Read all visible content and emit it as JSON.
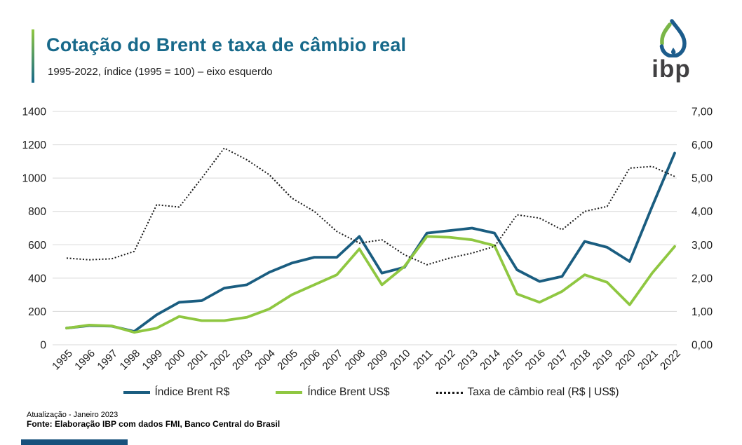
{
  "theme": {
    "title_color": "#17698a",
    "accent_green": "#8fc741",
    "accent_blue": "#17698a",
    "grid_color": "#d9d9d9"
  },
  "header": {
    "title": "Cotação do Brent e taxa de câmbio real",
    "subtitle": "1995-2022, índice (1995 = 100) – eixo esquerdo"
  },
  "logo": {
    "text": "ibp",
    "drop_color": "#1c5c8c",
    "leaf_color": "#7ab648"
  },
  "chart_data": {
    "type": "line",
    "title": "Cotação do Brent e taxa de câmbio real",
    "subtitle": "1995-2022, índice (1995 = 100) – eixo esquerdo",
    "grid": true,
    "legend_position": "bottom",
    "categories": [
      "1995",
      "1996",
      "1997",
      "1998",
      "1999",
      "2000",
      "2001",
      "2002",
      "2003",
      "2004",
      "2005",
      "2006",
      "2007",
      "2008",
      "2009",
      "2010",
      "2011",
      "2012",
      "2013",
      "2014",
      "2015",
      "2016",
      "2017",
      "2018",
      "2019",
      "2020",
      "2021",
      "2022"
    ],
    "left_axis": {
      "min": 0,
      "max": 1400,
      "step": 200,
      "ticks": [
        "0",
        "200",
        "400",
        "600",
        "800",
        "1000",
        "1200",
        "1400"
      ]
    },
    "right_axis": {
      "min": 0,
      "max": 7,
      "step": 1,
      "ticks": [
        "0,00",
        "1,00",
        "2,00",
        "3,00",
        "4,00",
        "5,00",
        "6,00",
        "7,00"
      ]
    },
    "series": [
      {
        "name": "Índice Brent R$",
        "axis": "left",
        "style": "solid",
        "color": "#1a5d80",
        "values": [
          100,
          115,
          112,
          80,
          180,
          255,
          265,
          340,
          360,
          435,
          490,
          525,
          525,
          650,
          430,
          465,
          670,
          685,
          700,
          670,
          450,
          380,
          410,
          620,
          585,
          500,
          830,
          1150
        ]
      },
      {
        "name": "Índice Brent US$",
        "axis": "left",
        "style": "solid",
        "color": "#8fc741",
        "values": [
          100,
          118,
          113,
          75,
          100,
          170,
          145,
          145,
          165,
          215,
          300,
          360,
          420,
          575,
          360,
          470,
          650,
          645,
          630,
          595,
          305,
          255,
          320,
          420,
          375,
          240,
          430,
          590
        ]
      },
      {
        "name": "Taxa de câmbio real (R$ | US$)",
        "axis": "right",
        "style": "dotted",
        "color": "#1a1a1a",
        "values": [
          2.6,
          2.55,
          2.58,
          2.8,
          4.2,
          4.13,
          5.0,
          5.9,
          5.55,
          5.1,
          4.4,
          4.0,
          3.4,
          3.05,
          3.15,
          2.7,
          2.4,
          2.6,
          2.75,
          2.95,
          3.9,
          3.8,
          3.45,
          4.0,
          4.15,
          5.3,
          5.35,
          5.05
        ]
      }
    ]
  },
  "footer": {
    "updated": "Atualização - Janeiro 2023",
    "source": "Fonte: Elaboração IBP com dados FMI, Banco Central do Brasil"
  }
}
